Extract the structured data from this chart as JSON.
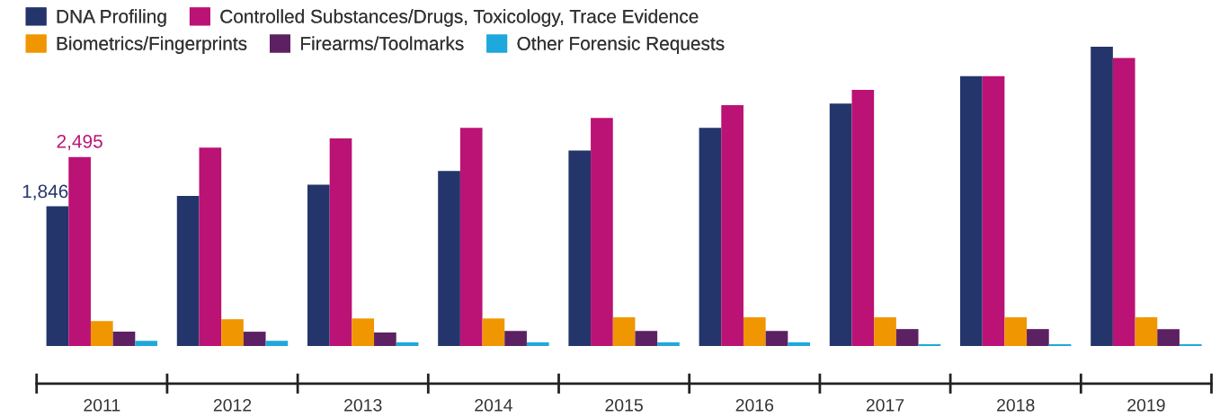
{
  "chart_data": {
    "type": "bar",
    "categories": [
      "2011",
      "2012",
      "2013",
      "2014",
      "2015",
      "2016",
      "2017",
      "2018",
      "2019"
    ],
    "series": [
      {
        "name": "DNA Profiling",
        "color": "#24356b",
        "values": [
          1846,
          1980,
          2130,
          2310,
          2580,
          2880,
          3200,
          3560,
          3950
        ],
        "value_labels": [
          "1,846",
          null,
          null,
          null,
          null,
          null,
          null,
          null,
          null
        ]
      },
      {
        "name": "Controlled Substances/Drugs, Toxicology, Trace Evidence",
        "color": "#bb1275",
        "values": [
          2495,
          2620,
          2740,
          2880,
          3010,
          3180,
          3380,
          3560,
          3800
        ],
        "value_labels": [
          "2,495",
          null,
          null,
          null,
          null,
          null,
          null,
          null,
          null
        ]
      },
      {
        "name": "Biometrics/Fingerprints",
        "color": "#f09600",
        "values": [
          330,
          355,
          365,
          365,
          380,
          380,
          380,
          380,
          380
        ]
      },
      {
        "name": "Firearms/Toolmarks",
        "color": "#5c2162",
        "values": [
          190,
          190,
          180,
          200,
          200,
          200,
          225,
          225,
          225
        ]
      },
      {
        "name": "Other Forensic Requests",
        "color": "#1ea8dc",
        "values": [
          70,
          70,
          50,
          50,
          50,
          50,
          25,
          25,
          25
        ]
      }
    ],
    "legend": "top left",
    "grid": false
  }
}
